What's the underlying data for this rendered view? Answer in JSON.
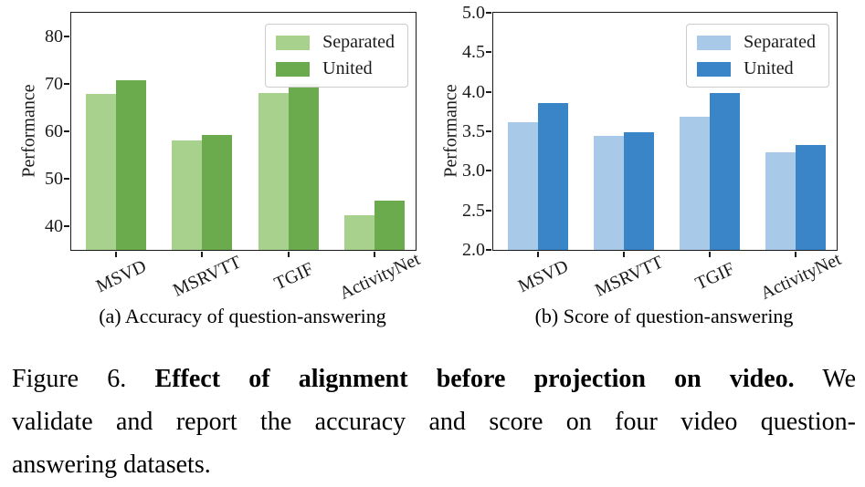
{
  "caption": {
    "label": "Figure 6.",
    "title_bold": "Effect of alignment before projection on video.",
    "line1_suffix": "We",
    "line2": "validate and report the accuracy and score on four video question-",
    "line3": "answering datasets."
  },
  "chart_data": [
    {
      "type": "bar",
      "title": "(a) Accuracy of question-answering",
      "xlabel": "",
      "ylabel": "Performance",
      "categories": [
        "MSVD",
        "MSRVTT",
        "TGIF",
        "ActivityNet"
      ],
      "series": [
        {
          "name": "Separated",
          "color": "#a9d18e",
          "values": [
            67.9,
            58.1,
            68.1,
            42.4
          ]
        },
        {
          "name": "United",
          "color": "#6cab4d",
          "values": [
            70.7,
            59.2,
            70.0,
            45.3
          ]
        }
      ],
      "ylim": [
        35,
        85
      ],
      "yticks": [
        40,
        50,
        60,
        70,
        80
      ],
      "ytick_labels": [
        "40",
        "50",
        "60",
        "70",
        "80"
      ],
      "grid": false,
      "legend_position": "upper right"
    },
    {
      "type": "bar",
      "title": "(b) Score of question-answering",
      "xlabel": "",
      "ylabel": "Performance",
      "categories": [
        "MSVD",
        "MSRVTT",
        "TGIF",
        "ActivityNet"
      ],
      "series": [
        {
          "name": "Separated",
          "color": "#a9c9e9",
          "values": [
            3.62,
            3.44,
            3.69,
            3.24
          ]
        },
        {
          "name": "United",
          "color": "#3a85c8",
          "values": [
            3.86,
            3.49,
            3.98,
            3.33
          ]
        }
      ],
      "ylim": [
        2.0,
        5.0
      ],
      "yticks": [
        2.0,
        2.5,
        3.0,
        3.5,
        4.0,
        4.5,
        5.0
      ],
      "ytick_labels": [
        "2.0",
        "2.5",
        "3.0",
        "3.5",
        "4.0",
        "4.5",
        "5.0"
      ],
      "grid": false,
      "legend_position": "upper right"
    }
  ]
}
